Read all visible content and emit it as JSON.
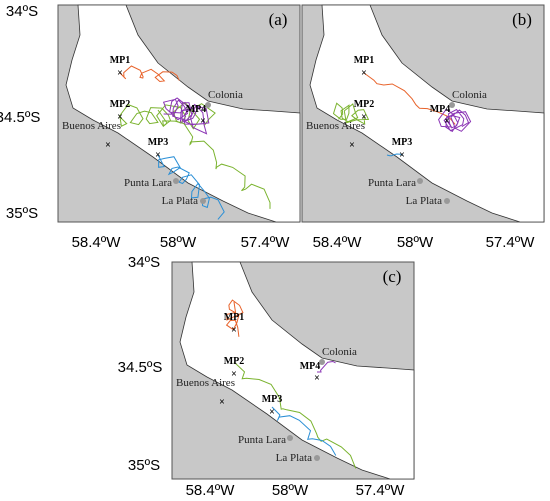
{
  "panels": [
    {
      "label": "(a)",
      "lat_labels": [
        "34ºS",
        "34.5ºS",
        "35ºS"
      ],
      "lon_labels": [
        "58.4ºW",
        "58ºW",
        "57.4ºW"
      ],
      "places": [
        "MP1",
        "MP2",
        "MP3",
        "MP4",
        "Colonia",
        "Buenos Aires",
        "Punta Lara",
        "La Plata"
      ]
    },
    {
      "label": "(b)",
      "lon_labels": [
        "58.4ºW",
        "58ºW",
        "57.4ºW"
      ],
      "places": [
        "MP1",
        "MP2",
        "MP3",
        "MP4",
        "Colonia",
        "Buenos Aires",
        "Punta Lara",
        "La Plata"
      ]
    },
    {
      "label": "(c)",
      "lat_labels": [
        "34ºS",
        "34.5ºS",
        "35ºS"
      ],
      "lon_labels": [
        "58.4ºW",
        "58ºW",
        "57.4ºW"
      ],
      "places": [
        "MP1",
        "MP2",
        "MP3",
        "MP4",
        "Colonia",
        "Buenos Aires",
        "Punta Lara",
        "La Plata"
      ]
    }
  ]
}
